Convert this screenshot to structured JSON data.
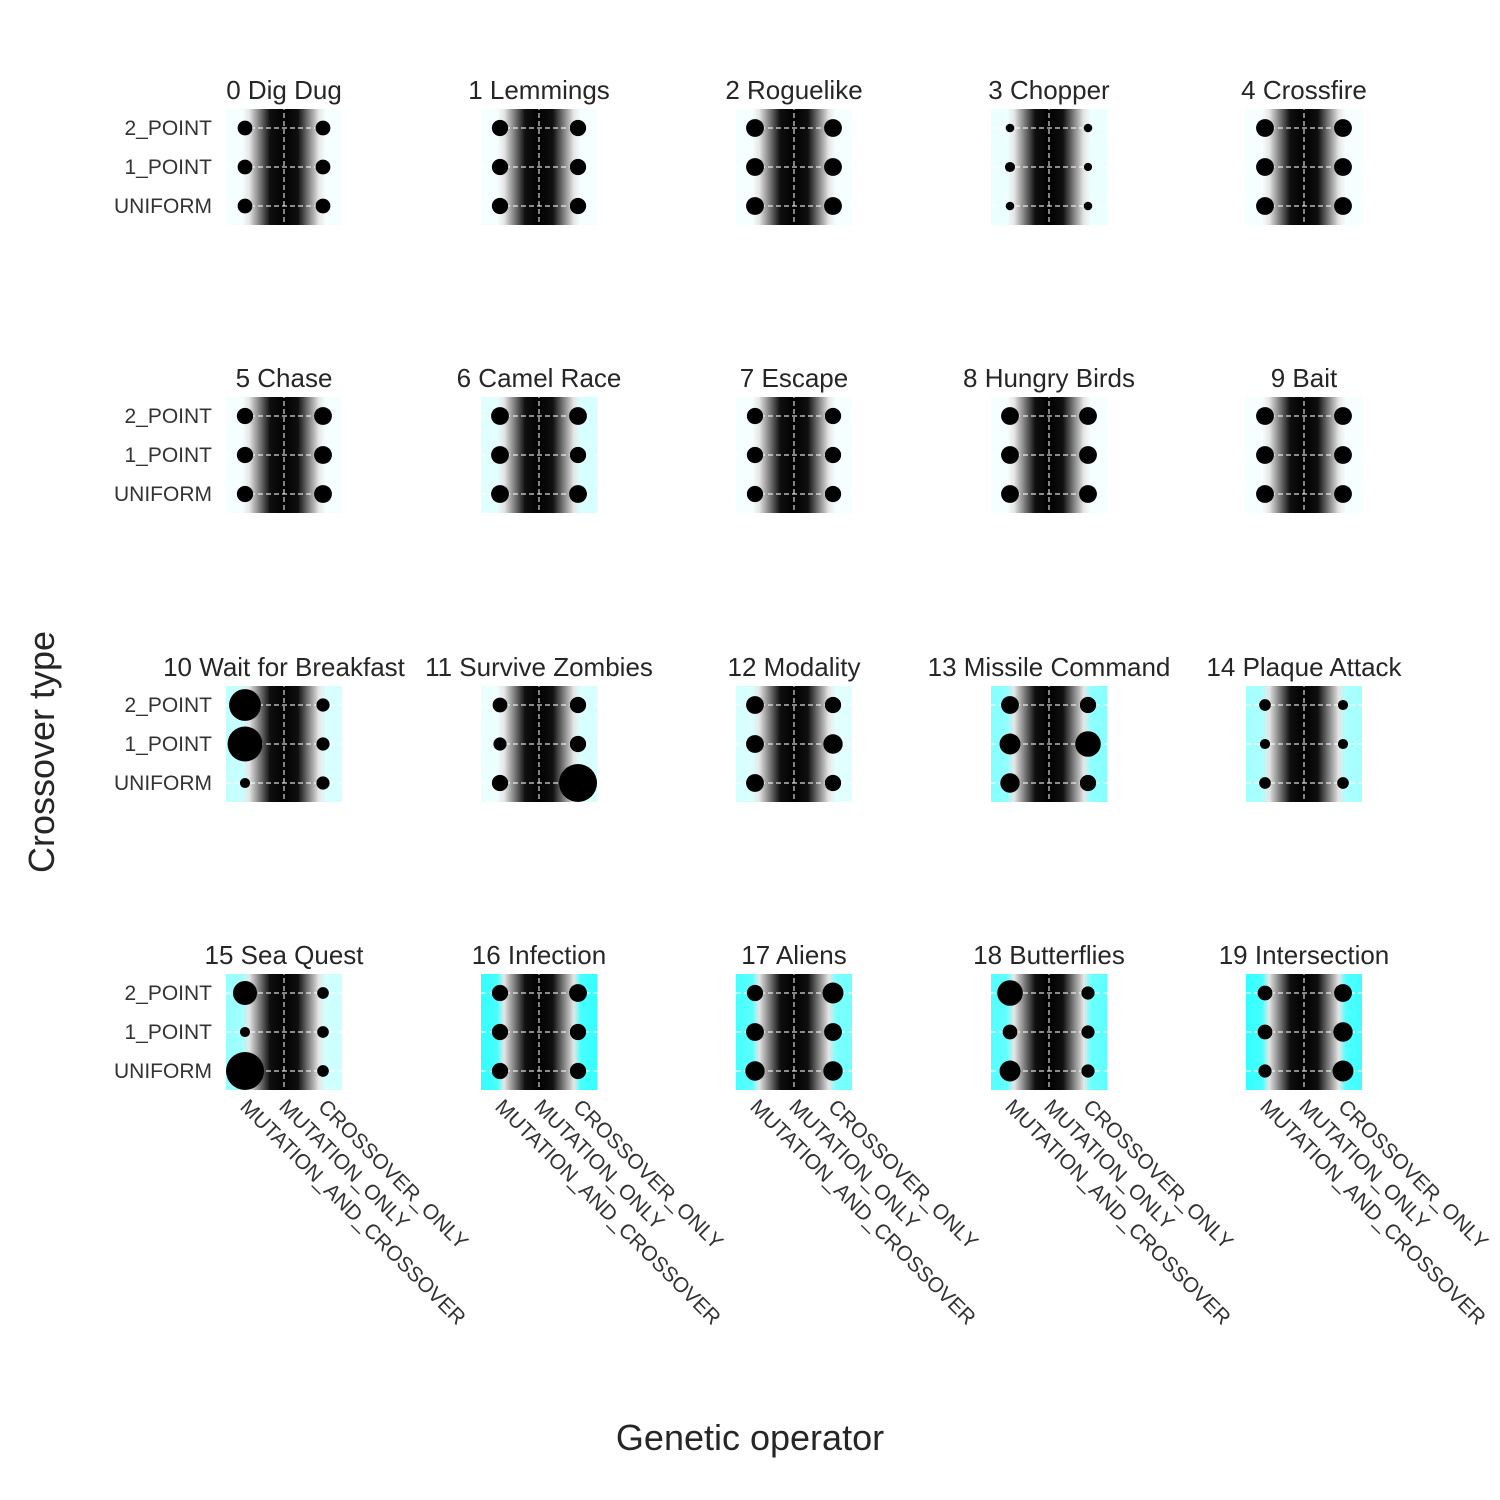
{
  "figure": {
    "xlabel": "Genetic operator",
    "ylabel": "Crossover type"
  },
  "chart_data": {
    "type": "scatter",
    "x_categories": [
      "MUTATION_AND_CROSSOVER",
      "MUTATION_ONLY",
      "CROSSOVER_ONLY"
    ],
    "y_categories": [
      "2_POINT",
      "1_POINT",
      "UNIFORM"
    ],
    "colors": {
      "points": "#000000",
      "background_high": "#33ffff",
      "background_center": "#000000",
      "grid": "#ffffff"
    },
    "size_scale": {
      "min_radius": 3.5,
      "max_radius": 19
    },
    "facets": [
      {
        "title": "0 Dig Dug",
        "tint": [
          0.05,
          0.05,
          0.05
        ],
        "sizes": [
          [
            0.25,
            0.0,
            0.25
          ],
          [
            0.25,
            0.0,
            0.25
          ],
          [
            0.25,
            0.0,
            0.25
          ]
        ]
      },
      {
        "title": "1 Lemmings",
        "tint": [
          0.05,
          0.05,
          0.05
        ],
        "sizes": [
          [
            0.3,
            0.0,
            0.3
          ],
          [
            0.3,
            0.0,
            0.3
          ],
          [
            0.3,
            0.0,
            0.3
          ]
        ]
      },
      {
        "title": "2 Roguelike",
        "tint": [
          0.05,
          0.05,
          0.05
        ],
        "sizes": [
          [
            0.35,
            0.0,
            0.35
          ],
          [
            0.35,
            0.0,
            0.35
          ],
          [
            0.35,
            0.0,
            0.35
          ]
        ]
      },
      {
        "title": "3 Chopper",
        "tint": [
          0.1,
          0.25,
          0.1
        ],
        "sizes": [
          [
            0.05,
            0.0,
            0.05
          ],
          [
            0.1,
            0.0,
            0.04
          ],
          [
            0.05,
            0.0,
            0.05
          ]
        ]
      },
      {
        "title": "4 Crossfire",
        "tint": [
          0.05,
          0.05,
          0.05
        ],
        "sizes": [
          [
            0.35,
            0.0,
            0.35
          ],
          [
            0.35,
            0.0,
            0.35
          ],
          [
            0.35,
            0.0,
            0.35
          ]
        ]
      },
      {
        "title": "5 Chase",
        "tint": [
          0.05,
          0.05,
          0.05
        ],
        "sizes": [
          [
            0.3,
            0.0,
            0.35
          ],
          [
            0.3,
            0.0,
            0.35
          ],
          [
            0.3,
            0.0,
            0.35
          ]
        ]
      },
      {
        "title": "6 Camel Race",
        "tint": [
          0.15,
          0.2,
          0.2
        ],
        "sizes": [
          [
            0.35,
            0.0,
            0.35
          ],
          [
            0.35,
            0.0,
            0.3
          ],
          [
            0.35,
            0.0,
            0.35
          ]
        ]
      },
      {
        "title": "7 Escape",
        "tint": [
          0.05,
          0.05,
          0.05
        ],
        "sizes": [
          [
            0.3,
            0.0,
            0.3
          ],
          [
            0.3,
            0.0,
            0.3
          ],
          [
            0.3,
            0.0,
            0.3
          ]
        ]
      },
      {
        "title": "8 Hungry Birds",
        "tint": [
          0.05,
          0.05,
          0.05
        ],
        "sizes": [
          [
            0.35,
            0.0,
            0.35
          ],
          [
            0.35,
            0.0,
            0.35
          ],
          [
            0.35,
            0.0,
            0.35
          ]
        ]
      },
      {
        "title": "9 Bait",
        "tint": [
          0.05,
          0.05,
          0.05
        ],
        "sizes": [
          [
            0.35,
            0.0,
            0.35
          ],
          [
            0.35,
            0.0,
            0.35
          ],
          [
            0.35,
            0.0,
            0.35
          ]
        ]
      },
      {
        "title": "10 Wait for Breakfast",
        "tint": [
          0.3,
          0.25,
          0.2
        ],
        "sizes": [
          [
            0.8,
            0.0,
            0.2
          ],
          [
            0.9,
            0.0,
            0.2
          ],
          [
            0.1,
            0.0,
            0.2
          ]
        ]
      },
      {
        "title": "11 Survive Zombies",
        "tint": [
          0.1,
          0.15,
          0.2
        ],
        "sizes": [
          [
            0.25,
            0.0,
            0.3
          ],
          [
            0.2,
            0.0,
            0.3
          ],
          [
            0.3,
            0.0,
            1.0
          ]
        ]
      },
      {
        "title": "12 Modality",
        "tint": [
          0.2,
          0.25,
          0.15
        ],
        "sizes": [
          [
            0.35,
            0.0,
            0.3
          ],
          [
            0.35,
            0.0,
            0.4
          ],
          [
            0.35,
            0.0,
            0.3
          ]
        ]
      },
      {
        "title": "13 Missile Command",
        "tint": [
          0.6,
          0.55,
          0.6
        ],
        "sizes": [
          [
            0.35,
            0.0,
            0.3
          ],
          [
            0.45,
            0.0,
            0.6
          ],
          [
            0.4,
            0.0,
            0.3
          ]
        ]
      },
      {
        "title": "14 Plaque Attack",
        "tint": [
          0.45,
          0.4,
          0.45
        ],
        "sizes": [
          [
            0.15,
            0.0,
            0.1
          ],
          [
            0.1,
            0.0,
            0.1
          ],
          [
            0.15,
            0.0,
            0.15
          ]
        ]
      },
      {
        "title": "15 Sea Quest",
        "tint": [
          0.5,
          0.3,
          0.25
        ],
        "sizes": [
          [
            0.55,
            0.0,
            0.15
          ],
          [
            0.1,
            0.0,
            0.15
          ],
          [
            1.0,
            0.0,
            0.15
          ]
        ]
      },
      {
        "title": "16 Infection",
        "tint": [
          1.0,
          1.0,
          1.0
        ],
        "sizes": [
          [
            0.3,
            0.0,
            0.35
          ],
          [
            0.3,
            0.0,
            0.3
          ],
          [
            0.3,
            0.0,
            0.3
          ]
        ]
      },
      {
        "title": "17 Aliens",
        "tint": [
          0.9,
          0.85,
          0.7
        ],
        "sizes": [
          [
            0.3,
            0.0,
            0.45
          ],
          [
            0.35,
            0.0,
            0.35
          ],
          [
            0.4,
            0.0,
            0.4
          ]
        ]
      },
      {
        "title": "18 Butterflies",
        "tint": [
          0.85,
          0.8,
          0.8
        ],
        "sizes": [
          [
            0.6,
            0.0,
            0.2
          ],
          [
            0.25,
            0.0,
            0.2
          ],
          [
            0.45,
            0.0,
            0.2
          ]
        ]
      },
      {
        "title": "19 Intersection",
        "tint": [
          1.0,
          0.9,
          0.95
        ],
        "sizes": [
          [
            0.25,
            0.0,
            0.35
          ],
          [
            0.25,
            0.0,
            0.4
          ],
          [
            0.2,
            0.0,
            0.45
          ]
        ]
      }
    ]
  }
}
